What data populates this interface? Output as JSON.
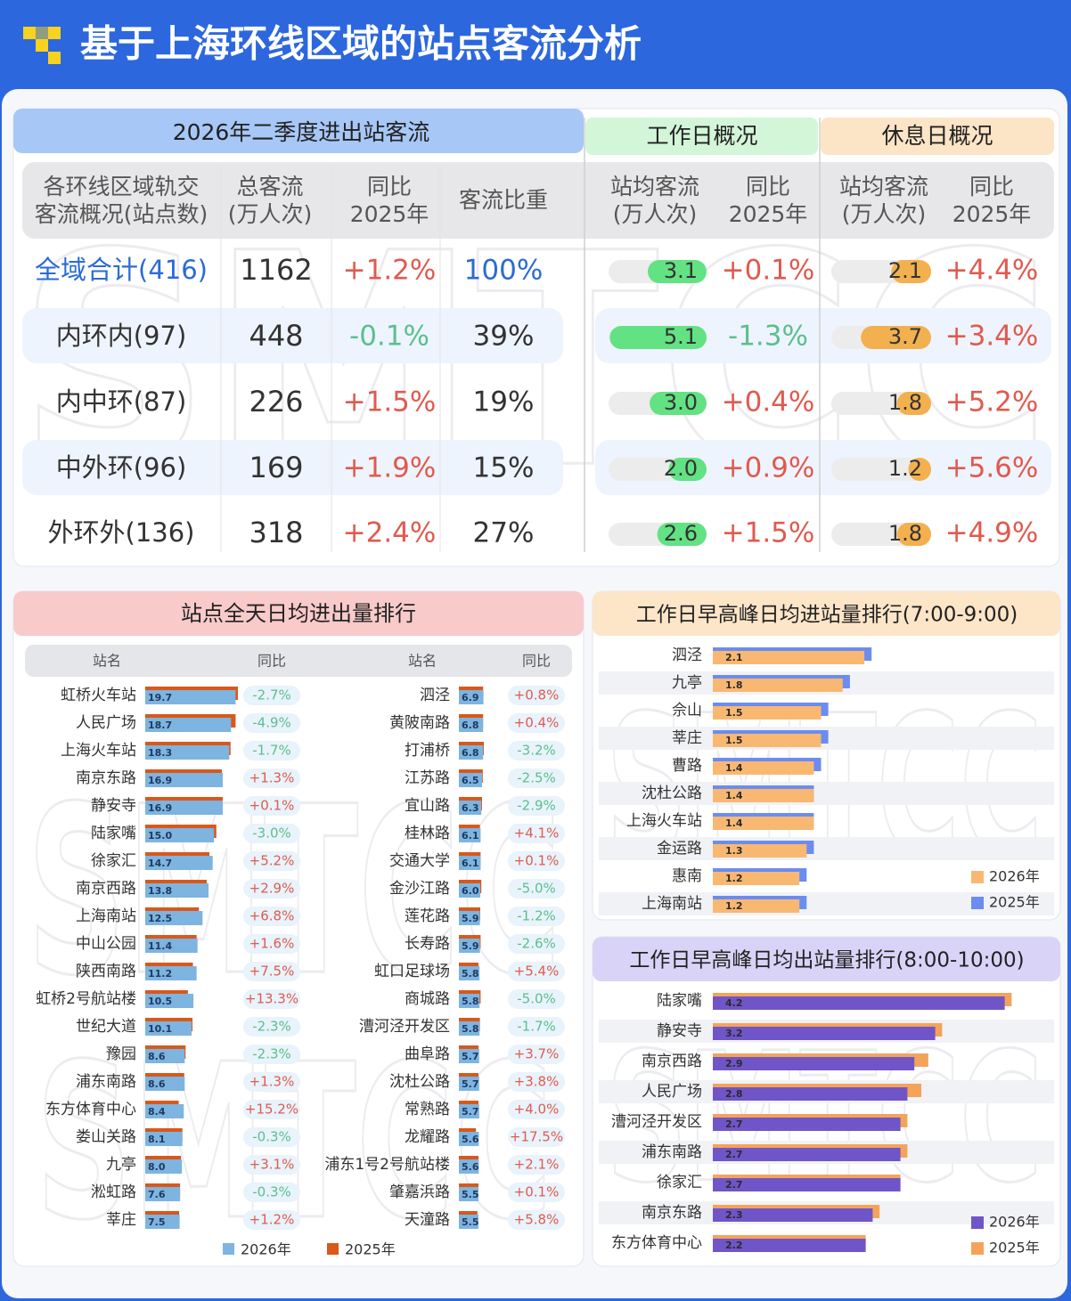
{
  "header": {
    "title": "基于上海环线区域的站点客流分析"
  },
  "watermark": "SMTCC",
  "summary": {
    "sections": [
      "2026年二季度进出站客流",
      "工作日概况",
      "休息日概况"
    ],
    "headers": [
      [
        "各环线区域轨交",
        "客流概况(站点数)"
      ],
      [
        "总客流",
        "(万人次)"
      ],
      [
        "同比",
        "2025年"
      ],
      [
        "客流比重"
      ],
      [
        "站均客流",
        "(万人次)"
      ],
      [
        "同比",
        "2025年"
      ],
      [
        "站均客流",
        "(万人次)"
      ],
      [
        "同比",
        "2025年"
      ]
    ],
    "rows": [
      {
        "name": "全域合计(416)",
        "total": 1162,
        "yoy": "+1.2%",
        "share": "100%",
        "workday_avg": 3.1,
        "workday_yoy": "+0.1%",
        "weekend_avg": 2.1,
        "weekend_yoy": "+4.4%"
      },
      {
        "name": "内环内(97)",
        "total": 448,
        "yoy": "-0.1%",
        "share": "39%",
        "workday_avg": 5.1,
        "workday_yoy": "-1.3%",
        "weekend_avg": 3.7,
        "weekend_yoy": "+3.4%"
      },
      {
        "name": "内中环(87)",
        "total": 226,
        "yoy": "+1.5%",
        "share": "19%",
        "workday_avg": 3.0,
        "workday_avg_label": "3.0",
        "workday_yoy": "+0.4%",
        "weekend_avg": 1.8,
        "weekend_yoy": "+5.2%"
      },
      {
        "name": "中外环(96)",
        "total": 169,
        "yoy": "+1.9%",
        "share": "15%",
        "workday_avg": 2.0,
        "workday_avg_label": "2.0",
        "workday_yoy": "+0.9%",
        "weekend_avg": 1.2,
        "weekend_yoy": "+5.6%"
      },
      {
        "name": "外环外(136)",
        "total": 318,
        "yoy": "+2.4%",
        "share": "27%",
        "workday_avg": 2.6,
        "workday_yoy": "+1.5%",
        "weekend_avg": 1.8,
        "weekend_yoy": "+4.9%"
      }
    ]
  },
  "daily_rank": {
    "title": "站点全天日均进出量排行",
    "headers": [
      "站名",
      "同比",
      "站名",
      "同比"
    ],
    "legend": [
      {
        "name": "2026年",
        "color": "#7db4e0"
      },
      {
        "name": "2025年",
        "color": "#d9581a"
      }
    ],
    "columns": [
      {
        "stations": [
          "虹桥火车站",
          "人民广场",
          "上海火车站",
          "南京东路",
          "静安寺",
          "陆家嘴",
          "徐家汇",
          "南京西路",
          "上海南站",
          "中山公园",
          "陕西南路",
          "虹桥2号航站楼",
          "世纪大道",
          "豫园",
          "浦东南路",
          "东方体育中心",
          "娄山关路",
          "九亭",
          "淞虹路",
          "莘庄"
        ],
        "v2026": [
          19.7,
          18.7,
          18.3,
          16.9,
          16.9,
          15.0,
          14.7,
          13.8,
          12.5,
          11.4,
          11.2,
          10.5,
          10.1,
          8.6,
          8.6,
          8.4,
          8.1,
          8.0,
          7.6,
          7.5
        ],
        "v2026_labels": [
          "19.7",
          "18.7",
          "18.3",
          "16.9",
          "16.9",
          "15.0",
          "14.7",
          "13.8",
          "12.5",
          "11.4",
          "11.2",
          "10.5",
          "10.1",
          "8.6",
          "8.6",
          "8.4",
          "8.1",
          "8.0",
          "7.6",
          "7.5"
        ],
        "v2025": [
          20.2,
          19.7,
          18.6,
          16.7,
          16.9,
          15.5,
          14.0,
          13.4,
          11.7,
          11.2,
          10.4,
          9.3,
          10.3,
          8.8,
          8.5,
          7.3,
          8.1,
          7.8,
          7.6,
          7.4
        ],
        "yoy": [
          "-2.7%",
          "-4.9%",
          "-1.7%",
          "+1.3%",
          "+0.1%",
          "-3.0%",
          "+5.2%",
          "+2.9%",
          "+6.8%",
          "+1.6%",
          "+7.5%",
          "+13.3%",
          "-2.3%",
          "-2.3%",
          "+1.3%",
          "+15.2%",
          "-0.3%",
          "+3.1%",
          "-0.3%",
          "+1.2%"
        ]
      },
      {
        "stations": [
          "泗泾",
          "黄陂南路",
          "打浦桥",
          "江苏路",
          "宜山路",
          "桂林路",
          "交通大学",
          "金沙江路",
          "莲花路",
          "长寿路",
          "虹口足球场",
          "商城路",
          "漕河泾开发区",
          "曲阜路",
          "沈杜公路",
          "常熟路",
          "龙耀路",
          "浦东1号2号航站楼",
          "肇嘉浜路",
          "天潼路"
        ],
        "v2026": [
          6.9,
          6.8,
          6.8,
          6.5,
          6.3,
          6.1,
          6.1,
          6.0,
          5.9,
          5.9,
          5.8,
          5.8,
          5.8,
          5.7,
          5.7,
          5.7,
          5.6,
          5.6,
          5.5,
          5.5
        ],
        "v2026_labels": [
          "6.9",
          "6.8",
          "6.8",
          "6.5",
          "6.3",
          "6.1",
          "6.1",
          "6.0",
          "5.9",
          "5.9",
          "5.8",
          "5.8",
          "5.8",
          "5.7",
          "5.7",
          "5.7",
          "5.6",
          "5.6",
          "5.5",
          "5.5"
        ],
        "v2025": [
          6.8,
          6.8,
          7.0,
          6.7,
          6.5,
          5.9,
          6.1,
          6.3,
          6.0,
          6.1,
          5.5,
          6.1,
          5.9,
          5.5,
          5.5,
          5.5,
          4.8,
          5.5,
          5.5,
          5.2
        ],
        "yoy": [
          "+0.8%",
          "+0.4%",
          "-3.2%",
          "-2.5%",
          "-2.9%",
          "+4.1%",
          "+0.1%",
          "-5.0%",
          "-1.2%",
          "-2.6%",
          "+5.4%",
          "-5.0%",
          "-1.7%",
          "+3.7%",
          "+3.8%",
          "+4.0%",
          "+17.5%",
          "+2.1%",
          "+0.1%",
          "+5.8%"
        ]
      }
    ]
  },
  "entry_rank": {
    "title": "工作日早高峰日均进站量排行(7:00-9:00)",
    "legend": [
      {
        "name": "2026年",
        "color": "#f9b872"
      },
      {
        "name": "2025年",
        "color": "#6b8cf0"
      }
    ],
    "stations": [
      "泗泾",
      "九亭",
      "佘山",
      "莘庄",
      "曹路",
      "沈杜公路",
      "上海火车站",
      "金运路",
      "惠南",
      "上海南站"
    ],
    "v2026": [
      2.1,
      1.8,
      1.5,
      1.5,
      1.4,
      1.4,
      1.4,
      1.3,
      1.2,
      1.2
    ],
    "v2025": [
      2.2,
      1.9,
      1.6,
      1.6,
      1.5,
      1.4,
      1.4,
      1.4,
      1.3,
      1.3
    ]
  },
  "exit_rank": {
    "title": "工作日早高峰日均出站量排行(8:00-10:00)",
    "legend": [
      {
        "name": "2026年",
        "color": "#6f55c8"
      },
      {
        "name": "2025年",
        "color": "#f4a35a"
      }
    ],
    "stations": [
      "陆家嘴",
      "静安寺",
      "南京西路",
      "人民广场",
      "漕河泾开发区",
      "浦东南路",
      "徐家汇",
      "南京东路",
      "东方体育中心"
    ],
    "v2026": [
      4.2,
      3.2,
      2.9,
      2.8,
      2.7,
      2.7,
      2.7,
      2.3,
      2.2
    ],
    "v2025": [
      4.3,
      3.3,
      3.1,
      3.0,
      2.8,
      2.8,
      2.7,
      2.4,
      2.2
    ]
  }
}
